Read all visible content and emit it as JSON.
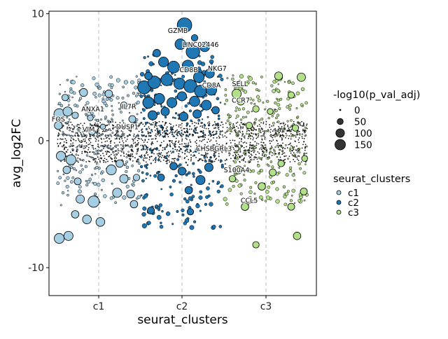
{
  "chart_data": {
    "type": "scatter",
    "title": "",
    "xlabel": "seurat_clusters",
    "ylabel": "avg_log2FC",
    "categories": [
      "c1",
      "c2",
      "c3"
    ],
    "y_ticks": [
      10,
      0,
      -10
    ],
    "y_tick_labels": [
      "10",
      "0",
      "-10"
    ],
    "ylim": [
      -12.2,
      10.2
    ],
    "grid": "dashed vertical lines at each cluster",
    "size_legend": {
      "title": "-log10(p_val_adj)",
      "values": [
        0,
        50,
        100,
        150
      ],
      "labels": [
        "0",
        "50",
        "100",
        "150"
      ]
    },
    "color_legend": {
      "title": "seurat_clusters",
      "entries": [
        {
          "label": "c1",
          "color": "#a6cee3"
        },
        {
          "label": "c2",
          "color": "#1f78b4"
        },
        {
          "label": "c3",
          "color": "#b2df8a"
        }
      ]
    },
    "gene_labels": [
      {
        "text": "GZMB",
        "cluster": "c2",
        "x_offset": -0.05,
        "y": 8.5
      },
      {
        "text": "LINC02446",
        "cluster": "c2",
        "x_offset": 0.22,
        "y": 7.4
      },
      {
        "text": "CD8B",
        "cluster": "c2",
        "x_offset": 0.08,
        "y": 5.4
      },
      {
        "text": "NKG7",
        "cluster": "c2",
        "x_offset": 0.42,
        "y": 5.5
      },
      {
        "text": "CD8A",
        "cluster": "c2",
        "x_offset": 0.35,
        "y": 4.2
      },
      {
        "text": "SELL",
        "cluster": "c3",
        "x_offset": -0.31,
        "y": 4.3
      },
      {
        "text": "CCR7",
        "cluster": "c3",
        "x_offset": -0.3,
        "y": 3.0
      },
      {
        "text": "ANXA1",
        "cluster": "c1",
        "x_offset": -0.07,
        "y": 2.3
      },
      {
        "text": "IL7R",
        "cluster": "c1",
        "x_offset": 0.36,
        "y": 2.5
      },
      {
        "text": "FOS",
        "cluster": "c1",
        "x_offset": -0.48,
        "y": 1.5
      },
      {
        "text": "VIM",
        "cluster": "c1",
        "x_offset": -0.12,
        "y": 0.7
      },
      {
        "text": "DUSP1",
        "cluster": "c1",
        "x_offset": 0.34,
        "y": 0.9
      },
      {
        "text": "CHSBGRL3",
        "cluster": "c2",
        "x_offset": 0.38,
        "y": -0.8
      },
      {
        "text": "S100A4",
        "cluster": "c3",
        "x_offset": -0.35,
        "y": -2.5
      },
      {
        "text": "CCL5",
        "cluster": "c3",
        "x_offset": -0.2,
        "y": -4.9
      }
    ],
    "series": [
      {
        "name": "c1",
        "color": "#a6cee3",
        "points": [
          {
            "x_offset": -0.47,
            "y": 2.1,
            "p": 80
          },
          {
            "x_offset": -0.37,
            "y": 2.3,
            "p": 60
          },
          {
            "x_offset": -0.28,
            "y": 2.0,
            "p": 30
          },
          {
            "x_offset": -0.18,
            "y": 3.8,
            "p": 45
          },
          {
            "x_offset": -0.45,
            "y": -1.2,
            "p": 60
          },
          {
            "x_offset": -0.38,
            "y": -2.3,
            "p": 40
          },
          {
            "x_offset": -0.33,
            "y": -1.5,
            "p": 70
          },
          {
            "x_offset": -0.22,
            "y": -4.6,
            "p": 50
          },
          {
            "x_offset": -0.14,
            "y": -6.2,
            "p": 55
          },
          {
            "x_offset": -0.06,
            "y": -4.8,
            "p": 90
          },
          {
            "x_offset": -0.47,
            "y": -7.7,
            "p": 70
          },
          {
            "x_offset": -0.36,
            "y": -7.5,
            "p": 60
          },
          {
            "x_offset": -0.28,
            "y": -5.8,
            "p": 40
          },
          {
            "x_offset": 0.02,
            "y": -6.4,
            "p": 55
          },
          {
            "x_offset": 0.15,
            "y": -2.3,
            "p": 70
          },
          {
            "x_offset": 0.22,
            "y": -4.1,
            "p": 60
          },
          {
            "x_offset": 0.38,
            "y": -4.2,
            "p": 45
          },
          {
            "x_offset": 0.42,
            "y": -5.0,
            "p": 40
          },
          {
            "x_offset": 0.12,
            "y": 3.7,
            "p": 40
          },
          {
            "x_offset": 0.3,
            "y": 2.8,
            "p": 30
          },
          {
            "x_offset": -0.1,
            "y": 1.8,
            "p": 25
          },
          {
            "x_offset": 0.05,
            "y": 1.1,
            "p": 20
          },
          {
            "x_offset": 0.4,
            "y": 1.7,
            "p": 35
          },
          {
            "x_offset": -0.48,
            "y": 1.2,
            "p": 45
          },
          {
            "x_offset": -0.25,
            "y": -3.2,
            "p": 35
          },
          {
            "x_offset": 0.3,
            "y": -3.0,
            "p": 50
          },
          {
            "x_offset": -0.4,
            "y": 3.4,
            "p": 30
          },
          {
            "x_offset": 0.25,
            "y": -1.8,
            "p": 40
          },
          {
            "x_offset": -0.08,
            "y": 0.7,
            "p": 30
          },
          {
            "x_offset": 0.45,
            "y": -2.9,
            "p": 30
          }
        ]
      },
      {
        "name": "c2",
        "color": "#1f78b4",
        "points": [
          {
            "x_offset": 0.03,
            "y": 9.1,
            "p": 150
          },
          {
            "x_offset": 0.13,
            "y": 7.0,
            "p": 130
          },
          {
            "x_offset": -0.02,
            "y": 7.6,
            "p": 80
          },
          {
            "x_offset": 0.27,
            "y": 7.4,
            "p": 70
          },
          {
            "x_offset": -0.1,
            "y": 5.8,
            "p": 100
          },
          {
            "x_offset": -0.22,
            "y": 6.2,
            "p": 70
          },
          {
            "x_offset": 0.07,
            "y": 5.9,
            "p": 90
          },
          {
            "x_offset": 0.2,
            "y": 5.0,
            "p": 80
          },
          {
            "x_offset": 0.33,
            "y": 5.3,
            "p": 60
          },
          {
            "x_offset": -0.45,
            "y": 4.2,
            "p": 120
          },
          {
            "x_offset": -0.33,
            "y": 4.6,
            "p": 110
          },
          {
            "x_offset": -0.18,
            "y": 4.8,
            "p": 100
          },
          {
            "x_offset": -0.03,
            "y": 4.5,
            "p": 90
          },
          {
            "x_offset": 0.1,
            "y": 4.3,
            "p": 120
          },
          {
            "x_offset": 0.22,
            "y": 3.9,
            "p": 100
          },
          {
            "x_offset": 0.35,
            "y": 4.0,
            "p": 80
          },
          {
            "x_offset": -0.4,
            "y": 3.0,
            "p": 90
          },
          {
            "x_offset": -0.27,
            "y": 3.3,
            "p": 80
          },
          {
            "x_offset": -0.12,
            "y": 3.0,
            "p": 70
          },
          {
            "x_offset": 0.0,
            "y": 3.5,
            "p": 60
          },
          {
            "x_offset": 0.15,
            "y": 3.1,
            "p": 75
          },
          {
            "x_offset": 0.29,
            "y": 2.8,
            "p": 70
          },
          {
            "x_offset": -0.35,
            "y": 2.0,
            "p": 60
          },
          {
            "x_offset": -0.2,
            "y": 2.3,
            "p": 50
          },
          {
            "x_offset": 0.02,
            "y": 1.9,
            "p": 55
          },
          {
            "x_offset": 0.18,
            "y": 2.1,
            "p": 50
          },
          {
            "x_offset": 0.4,
            "y": 2.4,
            "p": 40
          },
          {
            "x_offset": 0.0,
            "y": -2.4,
            "p": 45
          },
          {
            "x_offset": 0.22,
            "y": -3.1,
            "p": 60
          },
          {
            "x_offset": 0.32,
            "y": -2.1,
            "p": 50
          },
          {
            "x_offset": 0.08,
            "y": -3.9,
            "p": 40
          },
          {
            "x_offset": -0.37,
            "y": -5.5,
            "p": 35
          },
          {
            "x_offset": 0.1,
            "y": -5.6,
            "p": 30
          },
          {
            "x_offset": -0.1,
            "y": -2.0,
            "p": 40
          },
          {
            "x_offset": -0.25,
            "y": -2.9,
            "p": 35
          },
          {
            "x_offset": 0.15,
            "y": 8.1,
            "p": 30
          },
          {
            "x_offset": -0.3,
            "y": 6.9,
            "p": 40
          },
          {
            "x_offset": -0.4,
            "y": 5.1,
            "p": 40
          }
        ]
      },
      {
        "name": "c3",
        "color": "#b2df8a",
        "points": [
          {
            "x_offset": -0.35,
            "y": 3.7,
            "p": 60
          },
          {
            "x_offset": 0.15,
            "y": 5.1,
            "p": 45
          },
          {
            "x_offset": 0.42,
            "y": 5.0,
            "p": 50
          },
          {
            "x_offset": -0.3,
            "y": 3.1,
            "p": 40
          },
          {
            "x_offset": -0.12,
            "y": 2.5,
            "p": 30
          },
          {
            "x_offset": 0.3,
            "y": 3.6,
            "p": 30
          },
          {
            "x_offset": -0.33,
            "y": -2.3,
            "p": 45
          },
          {
            "x_offset": -0.05,
            "y": -3.6,
            "p": 40
          },
          {
            "x_offset": 0.08,
            "y": -2.5,
            "p": 35
          },
          {
            "x_offset": -0.25,
            "y": -5.2,
            "p": 40
          },
          {
            "x_offset": 0.3,
            "y": -5.2,
            "p": 35
          },
          {
            "x_offset": -0.12,
            "y": -8.2,
            "p": 30
          },
          {
            "x_offset": 0.37,
            "y": -7.5,
            "p": 40
          },
          {
            "x_offset": 0.45,
            "y": -4.0,
            "p": 35
          },
          {
            "x_offset": -0.4,
            "y": -3.0,
            "p": 30
          },
          {
            "x_offset": 0.18,
            "y": -1.8,
            "p": 30
          },
          {
            "x_offset": 0.35,
            "y": 1.0,
            "p": 30
          },
          {
            "x_offset": -0.2,
            "y": 1.2,
            "p": 30
          },
          {
            "x_offset": 0.46,
            "y": -1.4,
            "p": 25
          },
          {
            "x_offset": 0.05,
            "y": 2.3,
            "p": 25
          }
        ]
      }
    ]
  }
}
